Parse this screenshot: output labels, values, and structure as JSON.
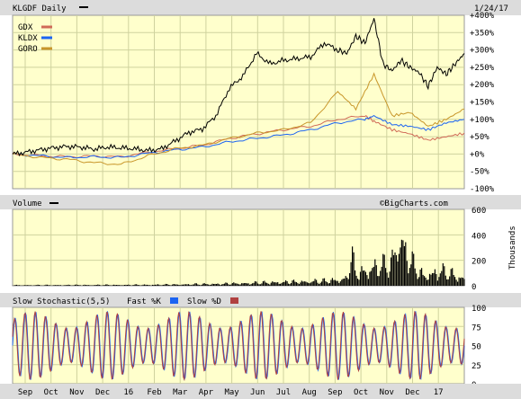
{
  "header": {
    "title": "KLGDF Daily",
    "date": "1/24/17",
    "watermark": "©BigCharts.com"
  },
  "colors": {
    "plot_bg": "#ffffcc",
    "bar_bg": "#dcdcdc",
    "grid": "#cfd29e",
    "klgdf": "#000000",
    "gdx": "#d06a58",
    "kldx": "#1c64f2",
    "goro": "#c8962a"
  },
  "legend": [
    {
      "label": "GDX",
      "color": "#d06a58"
    },
    {
      "label": "KLDX",
      "color": "#1c64f2"
    },
    {
      "label": "GORO",
      "color": "#c8962a"
    }
  ],
  "price_axis_labels": [
    "+400%",
    "+350%",
    "+300%",
    "+250%",
    "+200%",
    "+150%",
    "+100%",
    "+50%",
    "+0%",
    "-50%",
    "-100%"
  ],
  "volume_panel": {
    "title": "Volume",
    "axis_labels": [
      "600",
      "400",
      "200",
      "0"
    ],
    "unit_label": "Thousands"
  },
  "stoch_panel": {
    "title": "Slow Stochastic(5,5)",
    "fast_label": "Fast %K",
    "slow_label": "Slow %D",
    "axis_labels": [
      "100",
      "75",
      "50",
      "25",
      "0"
    ]
  },
  "x_labels": [
    "Sep",
    "Oct",
    "Nov",
    "Dec",
    "16",
    "Feb",
    "Mar",
    "Apr",
    "May",
    "Jun",
    "Jul",
    "Aug",
    "Sep",
    "Oct",
    "Nov",
    "Dec",
    "17"
  ],
  "chart_data": [
    {
      "type": "line",
      "title": "KLGDF Daily",
      "y_unit": "% change",
      "ylim": [
        -100,
        400
      ],
      "x_domain": [
        0,
        100
      ],
      "series": [
        {
          "name": "KLGDF",
          "color": "#000000",
          "points": [
            [
              0,
              0
            ],
            [
              3,
              5
            ],
            [
              6,
              12
            ],
            [
              9,
              18
            ],
            [
              12,
              22
            ],
            [
              15,
              20
            ],
            [
              18,
              14
            ],
            [
              21,
              20
            ],
            [
              24,
              18
            ],
            [
              27,
              15
            ],
            [
              30,
              10
            ],
            [
              33,
              15
            ],
            [
              36,
              38
            ],
            [
              39,
              62
            ],
            [
              42,
              72
            ],
            [
              45,
              110
            ],
            [
              48,
              190
            ],
            [
              51,
              225
            ],
            [
              54,
              290
            ],
            [
              57,
              260
            ],
            [
              60,
              270
            ],
            [
              63,
              275
            ],
            [
              66,
              280
            ],
            [
              69,
              320
            ],
            [
              72,
              300
            ],
            [
              74,
              290
            ],
            [
              76,
              340
            ],
            [
              78,
              320
            ],
            [
              80,
              390
            ],
            [
              82,
              260
            ],
            [
              84,
              240
            ],
            [
              86,
              270
            ],
            [
              88,
              250
            ],
            [
              90,
              235
            ],
            [
              92,
              195
            ],
            [
              94,
              250
            ],
            [
              96,
              230
            ],
            [
              98,
              260
            ],
            [
              100,
              290
            ]
          ]
        },
        {
          "name": "GDX",
          "color": "#d06a58",
          "points": [
            [
              0,
              0
            ],
            [
              6,
              -5
            ],
            [
              12,
              -8
            ],
            [
              18,
              -6
            ],
            [
              24,
              -8
            ],
            [
              30,
              5
            ],
            [
              36,
              15
            ],
            [
              42,
              25
            ],
            [
              48,
              45
            ],
            [
              54,
              58
            ],
            [
              60,
              70
            ],
            [
              66,
              80
            ],
            [
              72,
              100
            ],
            [
              78,
              110
            ],
            [
              80,
              95
            ],
            [
              84,
              70
            ],
            [
              88,
              58
            ],
            [
              92,
              40
            ],
            [
              96,
              50
            ],
            [
              100,
              60
            ]
          ]
        },
        {
          "name": "KLDX",
          "color": "#1c64f2",
          "points": [
            [
              0,
              0
            ],
            [
              6,
              -5
            ],
            [
              12,
              -10
            ],
            [
              18,
              -8
            ],
            [
              24,
              -10
            ],
            [
              30,
              2
            ],
            [
              36,
              12
            ],
            [
              42,
              20
            ],
            [
              48,
              35
            ],
            [
              54,
              45
            ],
            [
              60,
              55
            ],
            [
              66,
              70
            ],
            [
              72,
              90
            ],
            [
              78,
              100
            ],
            [
              80,
              110
            ],
            [
              84,
              85
            ],
            [
              88,
              80
            ],
            [
              92,
              70
            ],
            [
              96,
              90
            ],
            [
              100,
              100
            ]
          ]
        },
        {
          "name": "GORO",
          "color": "#c8962a",
          "points": [
            [
              0,
              0
            ],
            [
              6,
              -10
            ],
            [
              12,
              -15
            ],
            [
              18,
              -25
            ],
            [
              24,
              -30
            ],
            [
              30,
              -5
            ],
            [
              36,
              15
            ],
            [
              42,
              25
            ],
            [
              48,
              45
            ],
            [
              54,
              60
            ],
            [
              60,
              70
            ],
            [
              66,
              90
            ],
            [
              72,
              180
            ],
            [
              76,
              130
            ],
            [
              80,
              230
            ],
            [
              84,
              110
            ],
            [
              88,
              120
            ],
            [
              92,
              80
            ],
            [
              96,
              100
            ],
            [
              100,
              130
            ]
          ]
        }
      ]
    },
    {
      "type": "bar",
      "title": "Volume",
      "y_unit": "Thousands",
      "ylim": [
        0,
        600
      ],
      "profile": [
        [
          0,
          5
        ],
        [
          30,
          8
        ],
        [
          45,
          15
        ],
        [
          60,
          30
        ],
        [
          70,
          40
        ],
        [
          74,
          60
        ],
        [
          75,
          250
        ],
        [
          76,
          100
        ],
        [
          80,
          150
        ],
        [
          84,
          180
        ],
        [
          85,
          350
        ],
        [
          86,
          400
        ],
        [
          88,
          200
        ],
        [
          91,
          80
        ],
        [
          95,
          120
        ],
        [
          100,
          60
        ]
      ]
    },
    {
      "type": "line",
      "title": "Slow Stochastic(5,5)",
      "ylim": [
        0,
        100
      ],
      "series": [
        {
          "name": "Fast %K",
          "color": "#1c64f2",
          "cycles": 44,
          "phase": 0.0
        },
        {
          "name": "Slow %D",
          "color": "#b04040",
          "cycles": 44,
          "phase": 0.35
        }
      ]
    }
  ]
}
